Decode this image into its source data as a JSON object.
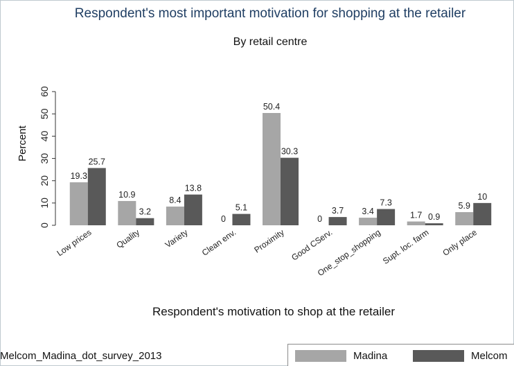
{
  "chart_data": {
    "type": "bar",
    "title": "Respondent's most important motivation for shopping at the retailer",
    "subtitle": "By retail centre",
    "xlabel": "Respondent's motivation to shop at the retailer",
    "ylabel": "Percent",
    "note": "Melcom_Madina_dot_survey_2013",
    "categories": [
      "Low prices",
      "Quality",
      "Variety",
      "Clean env.",
      "Proximity",
      "Good CServ.",
      "One_stop_shopping",
      "Supt. loc. farm",
      "Only place"
    ],
    "series": [
      {
        "name": "Madina",
        "color": "#a6a6a6",
        "values": [
          19.3,
          10.9,
          8.4,
          0,
          50.4,
          0,
          3.4,
          1.7,
          5.9
        ]
      },
      {
        "name": "Melcom",
        "color": "#595959",
        "values": [
          25.7,
          3.2,
          13.8,
          5.1,
          30.3,
          3.7,
          7.3,
          0.9,
          10
        ]
      }
    ],
    "ylim": [
      0,
      70
    ],
    "yticks": [
      0,
      10,
      20,
      30,
      40,
      50,
      60
    ],
    "grid": false,
    "legend_position": "bottom-right"
  }
}
